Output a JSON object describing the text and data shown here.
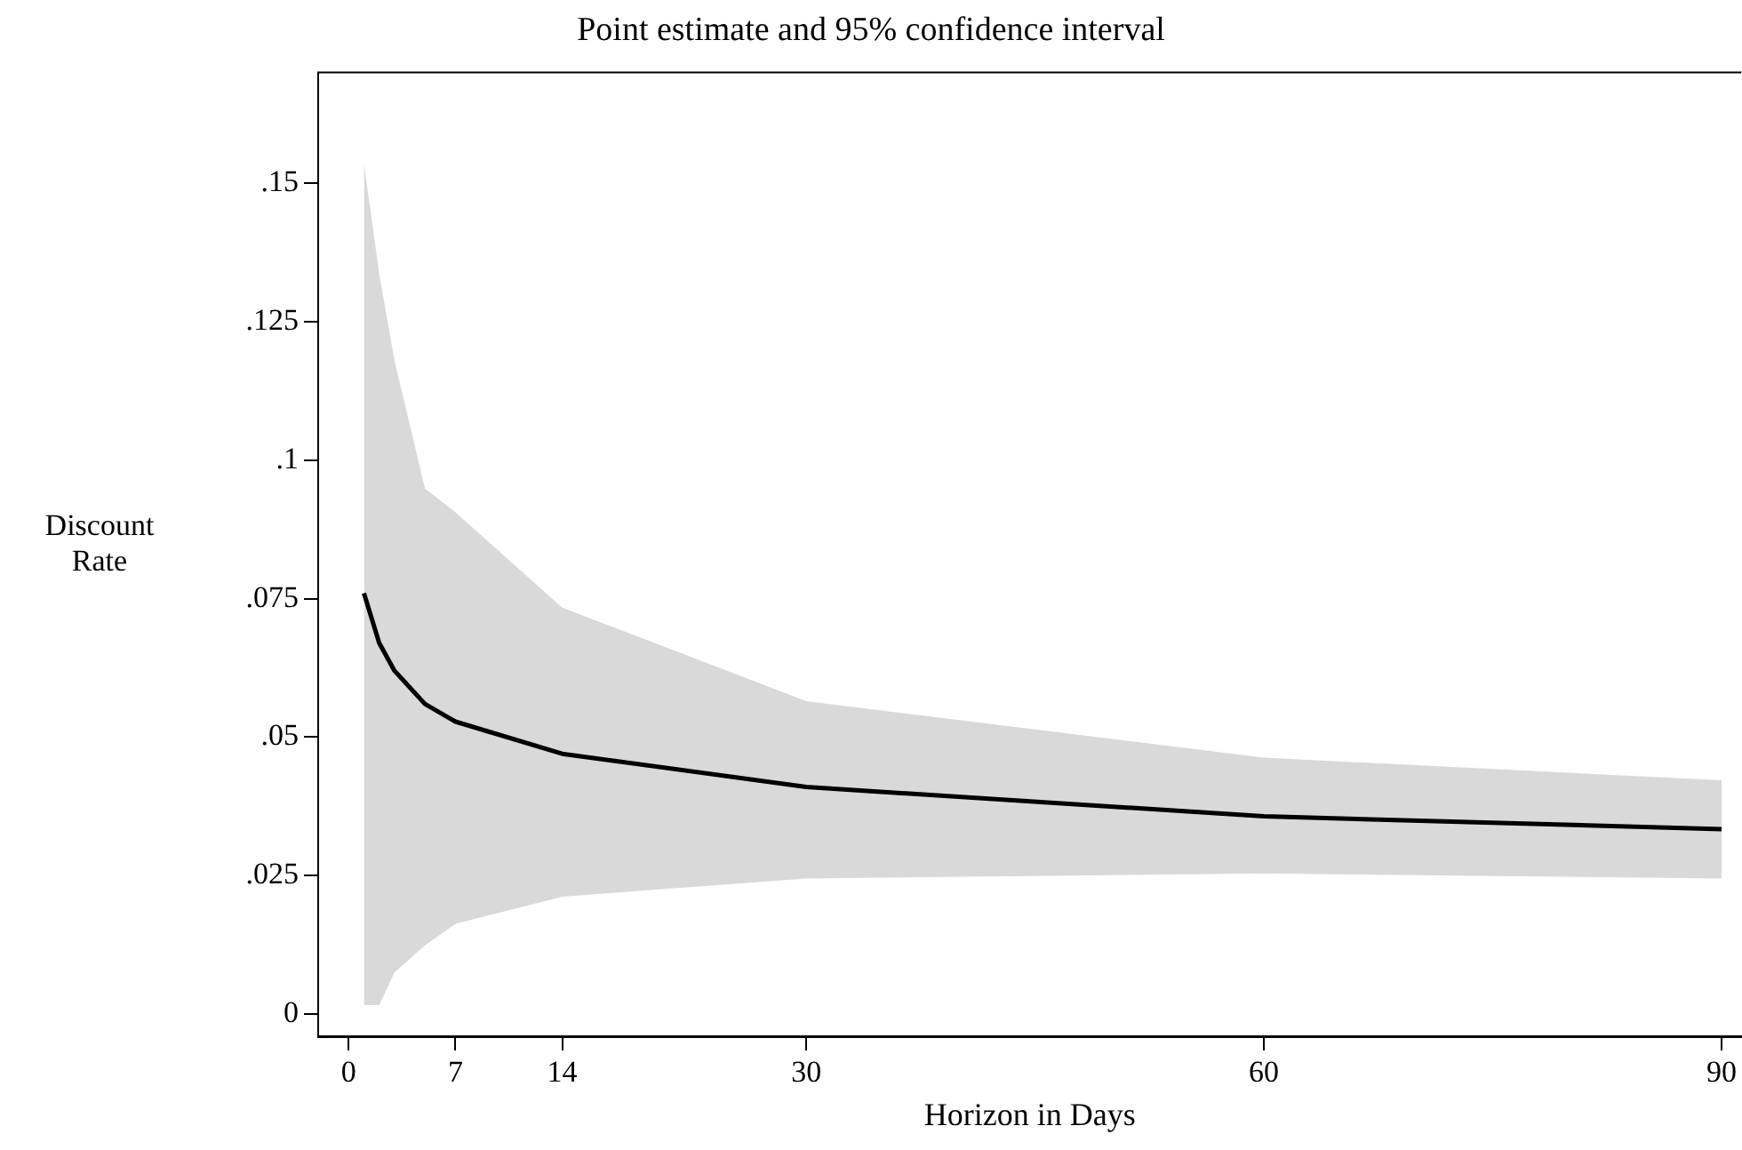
{
  "chart_data": {
    "type": "line",
    "title": "Point estimate and 95% confidence interval",
    "xlabel": "Horizon in Days",
    "ylabel": "Discount Rate",
    "xlim": [
      -2,
      91.3
    ],
    "xticks": [
      0,
      7,
      14,
      30,
      60,
      90
    ],
    "ylim": [
      -0.004,
      0.17
    ],
    "yticks": [
      {
        "value": 0,
        "label": "0"
      },
      {
        "value": 0.025,
        "label": ".025"
      },
      {
        "value": 0.05,
        "label": ".05"
      },
      {
        "value": 0.075,
        "label": ".075"
      },
      {
        "value": 0.1,
        "label": ".1"
      },
      {
        "value": 0.125,
        "label": ".125"
      },
      {
        "value": 0.15,
        "label": ".15"
      }
    ],
    "marker": "none",
    "line_style": "solid",
    "series": [
      {
        "color": "#000000",
        "x": [
          1,
          2,
          3,
          5,
          7,
          14,
          30,
          60,
          90
        ],
        "values": [
          0.076,
          0.067,
          0.062,
          0.056,
          0.0528,
          0.047,
          0.041,
          0.0357,
          0.0334
        ],
        "lower": [
          0.0016,
          0.0016,
          0.0075,
          0.0124,
          0.0163,
          0.0212,
          0.0245,
          0.0254,
          0.0245
        ],
        "upper": [
          0.1536,
          0.1337,
          0.118,
          0.0949,
          0.0906,
          0.0734,
          0.0565,
          0.0463,
          0.0422
        ]
      }
    ]
  }
}
